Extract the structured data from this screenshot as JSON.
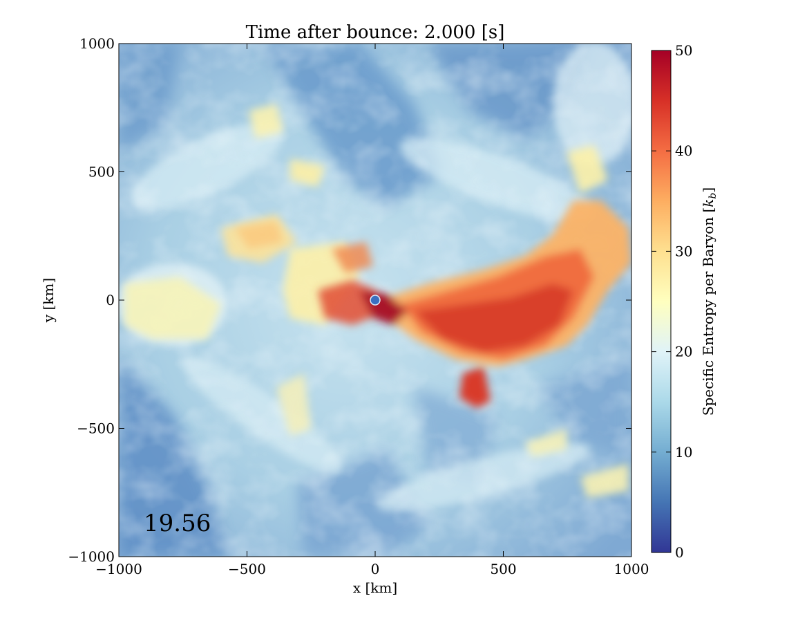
{
  "chart_data": {
    "type": "heatmap",
    "title": "Time after bounce: 2.000 [s]",
    "xlabel": "x [km]",
    "ylabel": "y [km]",
    "xlim": [
      -1000,
      1000
    ],
    "ylim": [
      -1000,
      1000
    ],
    "xticks": [
      -1000,
      -500,
      0,
      500,
      1000
    ],
    "yticks": [
      -1000,
      -500,
      0,
      500,
      1000
    ],
    "xtick_labels": [
      "−1000",
      "−500",
      "0",
      "500",
      "1000"
    ],
    "ytick_labels": [
      "−1000",
      "−500",
      "0",
      "500",
      "1000"
    ],
    "annotation": "19.56",
    "colorbar": {
      "label": "Specific Entropy per Baryon [k_b]",
      "label_main": "Specific Entropy per Baryon [",
      "label_k": "k",
      "label_sub": "b",
      "label_end": "]",
      "range": [
        0,
        50
      ],
      "ticks": [
        0,
        10,
        20,
        30,
        40,
        50
      ],
      "tick_labels": [
        "0",
        "10",
        "20",
        "30",
        "40",
        "50"
      ],
      "colormap": "RdYlBu_r",
      "stops": [
        "#313695",
        "#4575b4",
        "#74add1",
        "#abd9e9",
        "#e0f3f8",
        "#ffffbf",
        "#fee090",
        "#fdae61",
        "#f46d43",
        "#d73027",
        "#a50026"
      ]
    },
    "grid": false,
    "center_marker": {
      "x": 0,
      "y": 0,
      "color": "#3a6fc0"
    }
  }
}
